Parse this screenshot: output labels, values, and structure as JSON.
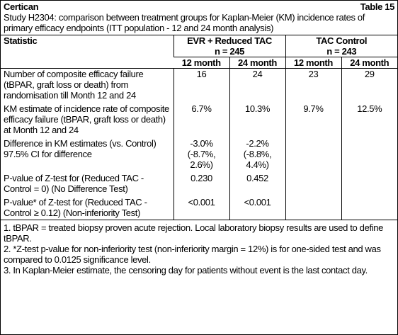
{
  "header": {
    "product": "Certican",
    "table_number": "Table 15",
    "caption": "Study H2304: comparison between treatment groups for Kaplan-Meier (KM) incidence rates of primary efficacy endpoints (ITT population - 12 and 24 month analysis)"
  },
  "table": {
    "statistic_header": "Statistic",
    "groups": [
      {
        "name": "EVR + Reduced TAC",
        "n": "n = 245"
      },
      {
        "name": "TAC Control",
        "n": "n = 243"
      }
    ],
    "timepoints": [
      "12 month",
      "24 month",
      "12 month",
      "24 month"
    ],
    "rows": [
      {
        "label": "Number of composite efficacy failure (tBPAR, graft loss or death) from randomisation till Month 12 and 24",
        "values": [
          "16",
          "24",
          "23",
          "29"
        ]
      },
      {
        "label": "KM estimate of incidence rate of composite efficacy failure (tBPAR, graft loss or death) at Month 12 and 24",
        "values": [
          "6.7%",
          "10.3%",
          "9.7%",
          "12.5%"
        ]
      },
      {
        "label": "Difference in KM estimates (vs. Control)",
        "values": [
          "-3.0%",
          "-2.2%"
        ]
      },
      {
        "label": "97.5% CI for difference",
        "values": [
          "(-8.7%, 2.6%)",
          "(-8.8%, 4.4%)"
        ]
      },
      {
        "label": "P-value of Z-test for (Reduced TAC - Control = 0) (No Difference Test)",
        "values": [
          "0.230",
          "0.452"
        ]
      },
      {
        "label": "P-value* of Z-test for (Reduced TAC - Control ≥ 0.12) (Non-inferiority Test)",
        "values": [
          "<0.001",
          "<0.001"
        ]
      }
    ]
  },
  "footnotes": [
    "1. tBPAR = treated biopsy proven acute rejection. Local laboratory biopsy results are used to define tBPAR.",
    "2. *Z-test p-value for non-inferiority test (non-inferiority margin = 12%) is for one-sided test and was compared to 0.0125 significance level.",
    "3. In Kaplan-Meier estimate, the censoring day for patients without event is the last contact day."
  ]
}
